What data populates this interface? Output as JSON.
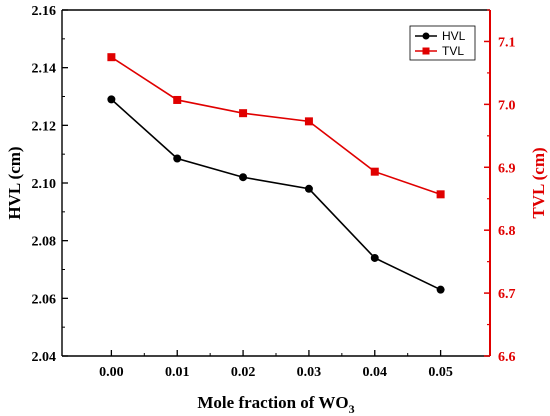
{
  "chart_data": {
    "type": "line",
    "x": [
      0.0,
      0.01,
      0.02,
      0.03,
      0.04,
      0.05
    ],
    "xlabel_main": "Mole fraction of WO",
    "xlabel_sub": "3",
    "xlim": [
      -0.0075,
      0.0575
    ],
    "x_ticks": [
      "0.00",
      "0.01",
      "0.02",
      "0.03",
      "0.04",
      "0.05"
    ],
    "ylabel_left": "HVL (cm)",
    "ylim_left": [
      2.04,
      2.16
    ],
    "y_ticks_left": [
      "2.04",
      "2.06",
      "2.08",
      "2.10",
      "2.12",
      "2.14",
      "2.16"
    ],
    "ylabel_right": "TVL (cm)",
    "ylim_right": [
      6.6,
      7.15
    ],
    "y_ticks_right": [
      "6.6",
      "6.7",
      "6.8",
      "6.9",
      "7.0",
      "7.1"
    ],
    "series": [
      {
        "name": "HVL",
        "axis": "left",
        "color": "#000000",
        "marker": "circle",
        "values": [
          2.129,
          2.1085,
          2.102,
          2.098,
          2.074,
          2.063
        ]
      },
      {
        "name": "TVL",
        "axis": "right",
        "color": "#e00000",
        "marker": "square",
        "values": [
          7.075,
          7.007,
          6.986,
          6.973,
          6.893,
          6.857
        ]
      }
    ],
    "legend": "top-right",
    "grid": false
  }
}
